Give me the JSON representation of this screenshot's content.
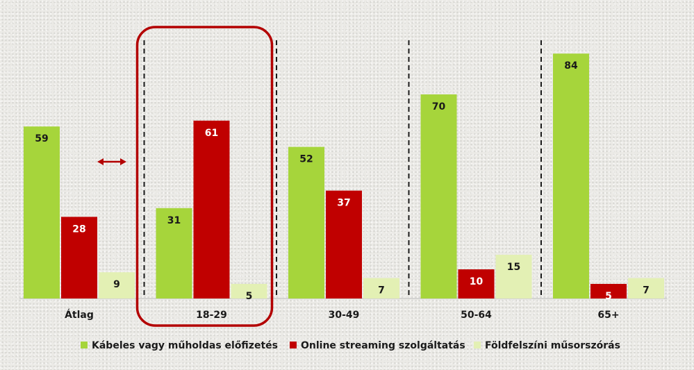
{
  "chart_data": {
    "type": "bar",
    "categories": [
      "Átlag",
      "18-29",
      "30-49",
      "50-64",
      "65+"
    ],
    "series": [
      {
        "name": "Kábeles vagy műholdas előfizetés",
        "color": "#a6d53b",
        "values": [
          59,
          31,
          52,
          70,
          84
        ]
      },
      {
        "name": "Online streaming szolgáltatás",
        "color": "#c00000",
        "values": [
          28,
          61,
          37,
          10,
          5
        ]
      },
      {
        "name": "Földfelszíni műsorszórás",
        "color": "#e3f0b4",
        "values": [
          9,
          5,
          7,
          15,
          7
        ]
      }
    ],
    "ylim": [
      0,
      90
    ],
    "grid": false,
    "legend": "bottom",
    "highlight": {
      "category": "18-29",
      "color": "#b30000"
    },
    "annotation": {
      "type": "double-arrow",
      "category": "Átlag",
      "color": "#b30000"
    },
    "separators": "dashed"
  }
}
